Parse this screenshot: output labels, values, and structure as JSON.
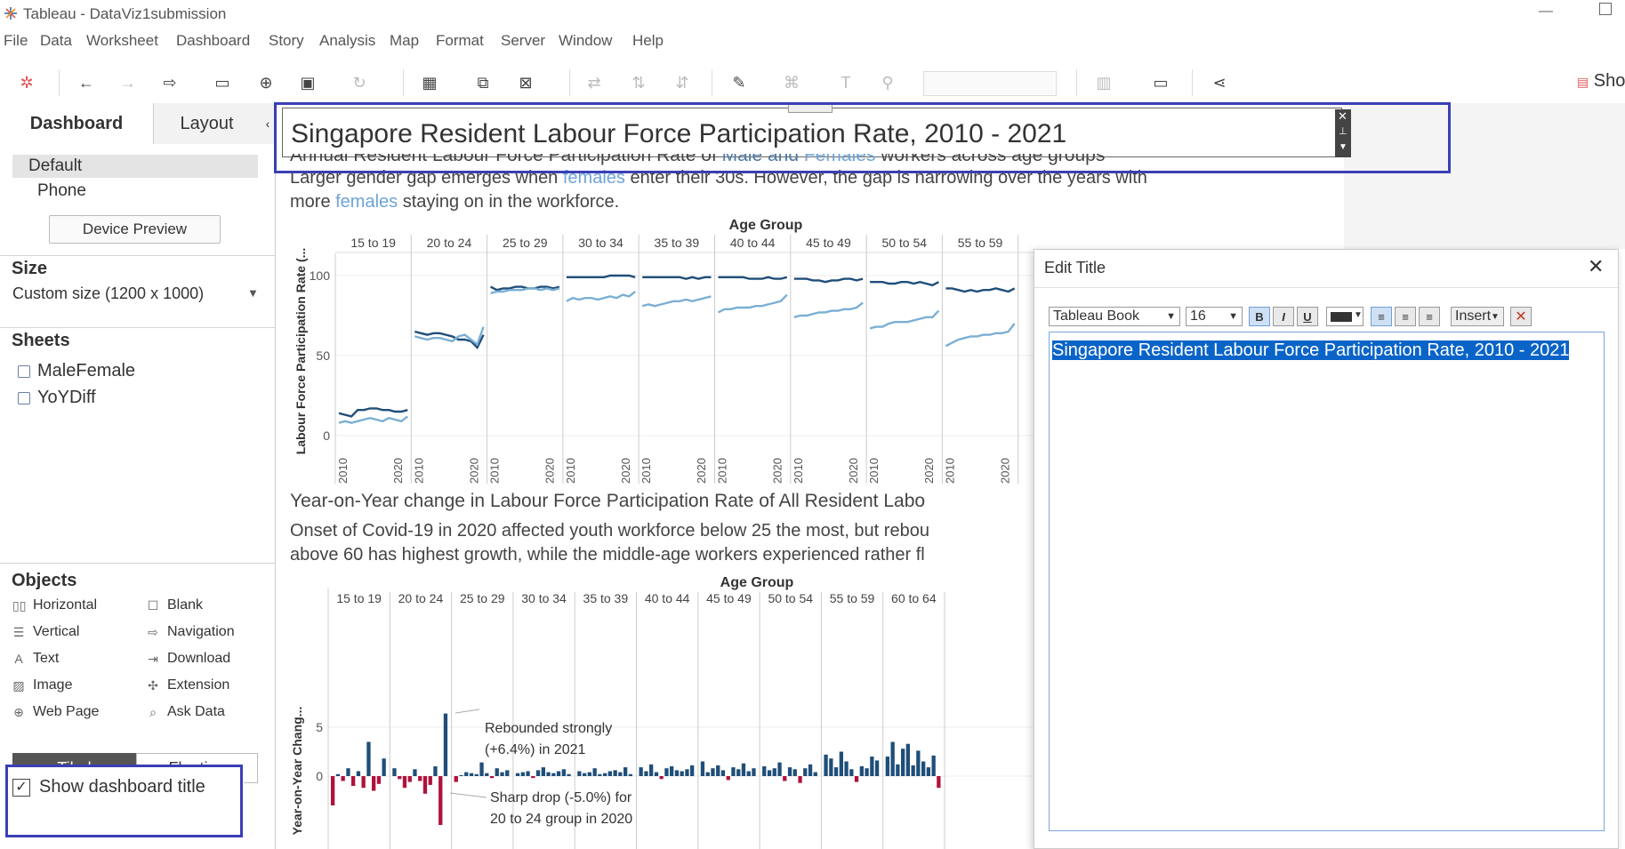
{
  "window": {
    "title": "Tableau - DataViz1submission"
  },
  "menu": [
    "File",
    "Data",
    "Worksheet",
    "Dashboard",
    "Story",
    "Analysis",
    "Map",
    "Format",
    "Server",
    "Window",
    "Help"
  ],
  "toolbar": {
    "show_me_label": "Sho"
  },
  "left_panel": {
    "tabs": [
      "Dashboard",
      "Layout"
    ],
    "devices": [
      "Default",
      "Phone"
    ],
    "device_preview_label": "Device Preview",
    "size_heading": "Size",
    "size_value": "Custom size (1200 x 1000)",
    "sheets_heading": "Sheets",
    "sheets": [
      "MaleFemale",
      "YoYDiff"
    ],
    "objects_heading": "Objects",
    "objects_left": [
      "Horizontal",
      "Vertical",
      "Text",
      "Image",
      "Web Page"
    ],
    "objects_right": [
      "Blank",
      "Navigation",
      "Download",
      "Extension",
      "Ask Data"
    ],
    "tiled_label": "Tiled",
    "floating_label": "Floating",
    "show_title_label": "Show dashboard title",
    "show_title_checked": true
  },
  "dashboard": {
    "title": "Singapore Resident Labour Force Participation Rate, 2010 - 2021",
    "chart1_heading_pre": "Annual Resident Labour Force Participation Rate of ",
    "chart1_heading_male": "Male and ",
    "chart1_heading_female": "Females",
    "chart1_heading_post": " workers across age groups",
    "chart1_desc1_pre": "Larger gender gap  emerges when ",
    "chart1_desc1_hl": "females",
    "chart1_desc1_post": " enter their 30s. However, the gap is narrowing over the years with",
    "chart1_desc2_pre": "more ",
    "chart1_desc2_hl": "females",
    "chart1_desc2_post": " staying on in the workforce.",
    "chart2_heading": "Year-on-Year change in Labour Force Participation Rate of All Resident Labo",
    "chart2_desc1": "Onset of Covid-19 in 2020 affected youth workforce  below 25 the most, but rebou",
    "chart2_desc2": "above 60 has highest growth, while the middle-age workers experienced rather fl"
  },
  "chart_data": [
    {
      "type": "line",
      "title": "Age Group",
      "ylabel": "Labour Force Participation Rate (...",
      "ylim": [
        0,
        100
      ],
      "yticks": [
        0,
        50,
        100
      ],
      "panels": [
        "15 to 19",
        "20 to 24",
        "25 to 29",
        "30 to 34",
        "35 to 39",
        "40 to 44",
        "45 to 49",
        "50 to 54",
        "55 to 59"
      ],
      "x_ticks": [
        "2010",
        "2020"
      ],
      "colors": {
        "male": "#1f4e79",
        "female": "#7bafd4"
      },
      "series": [
        {
          "name": "Male",
          "values": [
            [
              14,
              13,
              12,
              16,
              16,
              17,
              17,
              16,
              16,
              15,
              15,
              16
            ],
            [
              65,
              64,
              63,
              64,
              64,
              63,
              62,
              60,
              60,
              59,
              55,
              63
            ],
            [
              93,
              91,
              92,
              92,
              93,
              93,
              92,
              92,
              93,
              93,
              92,
              93
            ],
            [
              99,
              99,
              99,
              99,
              99,
              99,
              99,
              100,
              100,
              100,
              100,
              99
            ],
            [
              99,
              99,
              99,
              99,
              99,
              99,
              99,
              98,
              99,
              98,
              99,
              99
            ],
            [
              99,
              99,
              99,
              99,
              99,
              98,
              98,
              98,
              99,
              98,
              98,
              99
            ],
            [
              98,
              98,
              98,
              97,
              97,
              96,
              97,
              97,
              98,
              98,
              97,
              98
            ],
            [
              96,
              96,
              96,
              95,
              95,
              96,
              96,
              95,
              96,
              95,
              94,
              96
            ],
            [
              92,
              92,
              91,
              90,
              91,
              90,
              91,
              91,
              92,
              91,
              90,
              92
            ]
          ]
        },
        {
          "name": "Female",
          "values": [
            [
              8,
              9,
              8,
              9,
              10,
              11,
              10,
              9,
              11,
              10,
              9,
              12
            ],
            [
              62,
              61,
              60,
              61,
              61,
              60,
              59,
              62,
              63,
              60,
              57,
              68
            ],
            [
              89,
              90,
              90,
              91,
              91,
              91,
              92,
              92,
              91,
              92,
              91,
              92
            ],
            [
              84,
              86,
              85,
              86,
              86,
              85,
              86,
              87,
              86,
              88,
              87,
              90
            ],
            [
              81,
              82,
              81,
              82,
              83,
              84,
              84,
              85,
              84,
              85,
              86,
              87
            ],
            [
              77,
              79,
              79,
              80,
              80,
              80,
              81,
              81,
              82,
              83,
              84,
              88
            ],
            [
              74,
              75,
              75,
              76,
              77,
              77,
              78,
              78,
              79,
              79,
              80,
              83
            ],
            [
              67,
              68,
              68,
              70,
              71,
              71,
              71,
              72,
              73,
              74,
              74,
              78
            ],
            [
              56,
              58,
              60,
              61,
              62,
              62,
              63,
              63,
              64,
              64,
              65,
              70
            ]
          ]
        }
      ]
    },
    {
      "type": "bar",
      "title": "Age Group",
      "ylabel": "Year-on-Year Chang...",
      "yticks": [
        0,
        5
      ],
      "panels": [
        "15 to 19",
        "20 to 24",
        "25 to 29",
        "30 to 34",
        "35 to 39",
        "40 to 44",
        "45 to 49",
        "50 to 54",
        "55 to 59",
        "60 to 64"
      ],
      "colors": {
        "positive": "#1f4e79",
        "negative": "#b1123a"
      },
      "annotations": [
        "Rebounded strongly (+6.4%) in 2021",
        "Sharp drop (-5.0%) for 20 to 24 group in 2020"
      ],
      "values": [
        [
          -3.0,
          0.2,
          -0.5,
          0.8,
          -1.0,
          0.5,
          -1.2,
          3.5,
          -1.5,
          -0.8,
          1.8
        ],
        [
          0.8,
          -0.3,
          -1.2,
          -0.6,
          0.7,
          -0.5,
          -1.8,
          -0.9,
          1.0,
          -5.0,
          6.4
        ],
        [
          -0.6,
          0.1,
          0.4,
          0.3,
          0.2,
          1.4,
          0.3,
          -0.2,
          0.8,
          0.4,
          0.6
        ],
        [
          0.3,
          0.4,
          0.5,
          -0.2,
          0.6,
          0.9,
          0.4,
          0.3,
          0.5,
          0.7,
          0.2
        ],
        [
          0.5,
          0.3,
          0.4,
          0.8,
          0.2,
          0.3,
          0.5,
          0.6,
          0.4,
          0.9,
          0.2
        ],
        [
          0.9,
          0.5,
          1.2,
          0.4,
          -0.3,
          0.8,
          1.0,
          0.6,
          0.5,
          0.7,
          1.1
        ],
        [
          1.5,
          0.4,
          0.8,
          1.1,
          0.6,
          -0.4,
          0.9,
          0.7,
          1.3,
          0.5,
          0.8
        ],
        [
          1.0,
          0.6,
          0.8,
          1.4,
          -0.5,
          0.9,
          0.7,
          -0.7,
          0.8,
          1.2,
          0.4
        ],
        [
          2.2,
          1.8,
          0.9,
          2.5,
          1.5,
          0.7,
          -0.6,
          1.0,
          0.8,
          2.0,
          1.6
        ],
        [
          2.0,
          3.5,
          1.2,
          2.8,
          3.3,
          1.1,
          2.6,
          1.5,
          0.9,
          2.1,
          -1.2
        ]
      ]
    }
  ],
  "edit_title": {
    "title": "Edit Title",
    "font": "Tableau Book",
    "size": "16",
    "bold": "B",
    "italic": "I",
    "underline": "U",
    "insert_label": "Insert",
    "text": "Singapore Resident Labour Force Participation Rate, 2010 - 2021"
  }
}
